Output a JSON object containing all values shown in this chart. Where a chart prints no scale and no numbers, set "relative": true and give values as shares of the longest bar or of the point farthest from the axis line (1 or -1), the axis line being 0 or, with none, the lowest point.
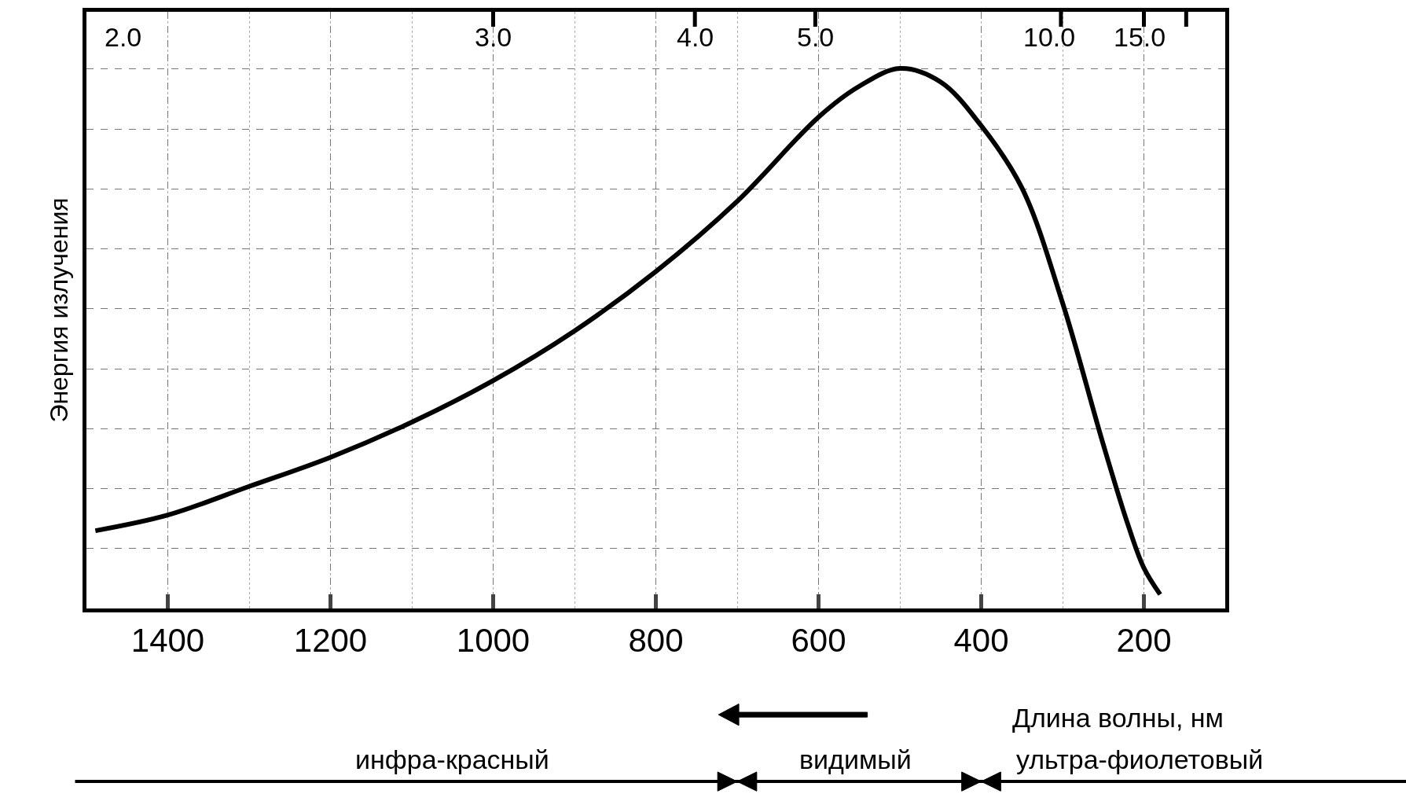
{
  "chart_data": {
    "type": "line",
    "relative": true,
    "ylabel": "Энергия излучения",
    "xlabel": "Длина волны, нм",
    "x": [
      1489,
      1400,
      1300,
      1200,
      1100,
      1000,
      900,
      800,
      700,
      600,
      550,
      500,
      450,
      400,
      350,
      300,
      250,
      220,
      200,
      180
    ],
    "series": [
      {
        "color": "#000000",
        "values": [
          0.144,
          0.173,
          0.226,
          0.28,
          0.345,
          0.422,
          0.514,
          0.624,
          0.754,
          0.91,
          0.967,
          1.0,
          0.975,
          0.894,
          0.779,
          0.566,
          0.304,
          0.157,
          0.075,
          0.026
        ]
      }
    ],
    "xlim": [
      1500,
      100
    ],
    "xticks": [
      1400,
      1200,
      1000,
      800,
      600,
      400,
      200
    ],
    "grid": true,
    "marker": "none",
    "line_style": "solid",
    "annotations": [
      "2.0",
      "3.0",
      "4.0",
      "5.0",
      "10.0",
      "15.0",
      "инфра-красный",
      "видимый",
      "ультра-фиолетовый"
    ]
  }
}
